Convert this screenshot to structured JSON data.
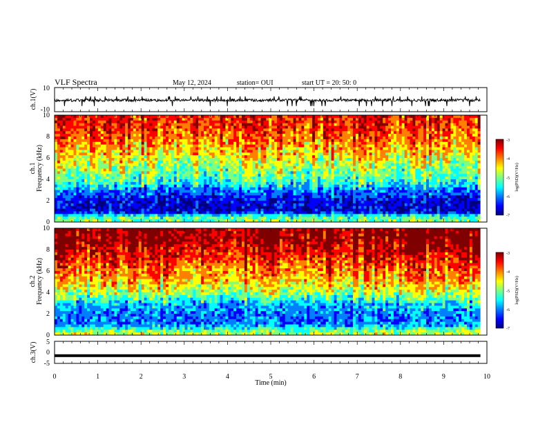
{
  "header": {
    "title": "VLF Spectra",
    "date": "May 12, 2024",
    "station": "station= OUI",
    "start": "start  UT =   20: 50: 0"
  },
  "chart_data": [
    {
      "type": "line",
      "panel": "ch1-waveform",
      "ylabel": "ch.1(V)",
      "ylim": [
        -10,
        10
      ],
      "y_ticks": [
        "10",
        "-10"
      ],
      "baseline": -0.5,
      "trace_range": [
        -3,
        2
      ],
      "color": "#000000"
    },
    {
      "type": "heatmap",
      "panel": "ch1-spectrogram",
      "ylabel": "ch.1\nFrequency (kHz)",
      "ylim": [
        0,
        10
      ],
      "y_ticks": [
        "0",
        "2",
        "4",
        "6",
        "8",
        "10"
      ],
      "colorbar": {
        "label": "log(PSD)(V²/Hz)",
        "range": [
          -7,
          -3
        ],
        "ticks": [
          "-3",
          "-4",
          "-5",
          "-6",
          "-7"
        ]
      },
      "profile_levels_log_psd": [
        [
          0,
          -5.0
        ],
        [
          0.5,
          -5.3
        ],
        [
          1,
          -6.6
        ],
        [
          2,
          -6.5
        ],
        [
          3,
          -6.0
        ],
        [
          3.5,
          -5.6
        ],
        [
          4,
          -5.3
        ],
        [
          5,
          -5.0
        ],
        [
          6,
          -4.7
        ],
        [
          7,
          -4.4
        ],
        [
          8,
          -4.1
        ],
        [
          9,
          -3.9
        ],
        [
          10,
          -3.8
        ]
      ]
    },
    {
      "type": "heatmap",
      "panel": "ch2-spectrogram",
      "ylabel": "ch.2\nFrequency (kHz)",
      "ylim": [
        0,
        10
      ],
      "y_ticks": [
        "0",
        "2",
        "4",
        "6",
        "8",
        "10"
      ],
      "colorbar": {
        "label": "log(PSD)(V²/Hz)",
        "range": [
          -7,
          -3
        ],
        "ticks": [
          "-3",
          "-4",
          "-5",
          "-6",
          "-7"
        ]
      },
      "profile_levels_log_psd": [
        [
          0,
          -4.8
        ],
        [
          0.5,
          -5.2
        ],
        [
          1,
          -6.0
        ],
        [
          2,
          -6.0
        ],
        [
          3,
          -5.7
        ],
        [
          3.5,
          -5.3
        ],
        [
          4,
          -4.9
        ],
        [
          5,
          -4.5
        ],
        [
          6,
          -4.2
        ],
        [
          7,
          -3.9
        ],
        [
          8,
          -3.6
        ],
        [
          9,
          -3.4
        ],
        [
          10,
          -3.3
        ]
      ]
    },
    {
      "type": "line",
      "panel": "ch3-waveform",
      "ylabel": "ch.3(V)",
      "ylim": [
        -5,
        5
      ],
      "y_ticks": [
        "5",
        "0",
        "-5"
      ],
      "level": -1.5,
      "color": "#000000"
    }
  ],
  "x_axis": {
    "label": "Time (min)",
    "range": [
      0,
      10
    ],
    "data_end": 9.85,
    "ticks": [
      "0",
      "1",
      "2",
      "3",
      "4",
      "5",
      "6",
      "7",
      "8",
      "9",
      "10"
    ]
  },
  "colormap": [
    "#00007f",
    "#0000ff",
    "#007fff",
    "#00ffff",
    "#7fff7f",
    "#ffff00",
    "#ff7f00",
    "#ff0000",
    "#7f0000"
  ]
}
